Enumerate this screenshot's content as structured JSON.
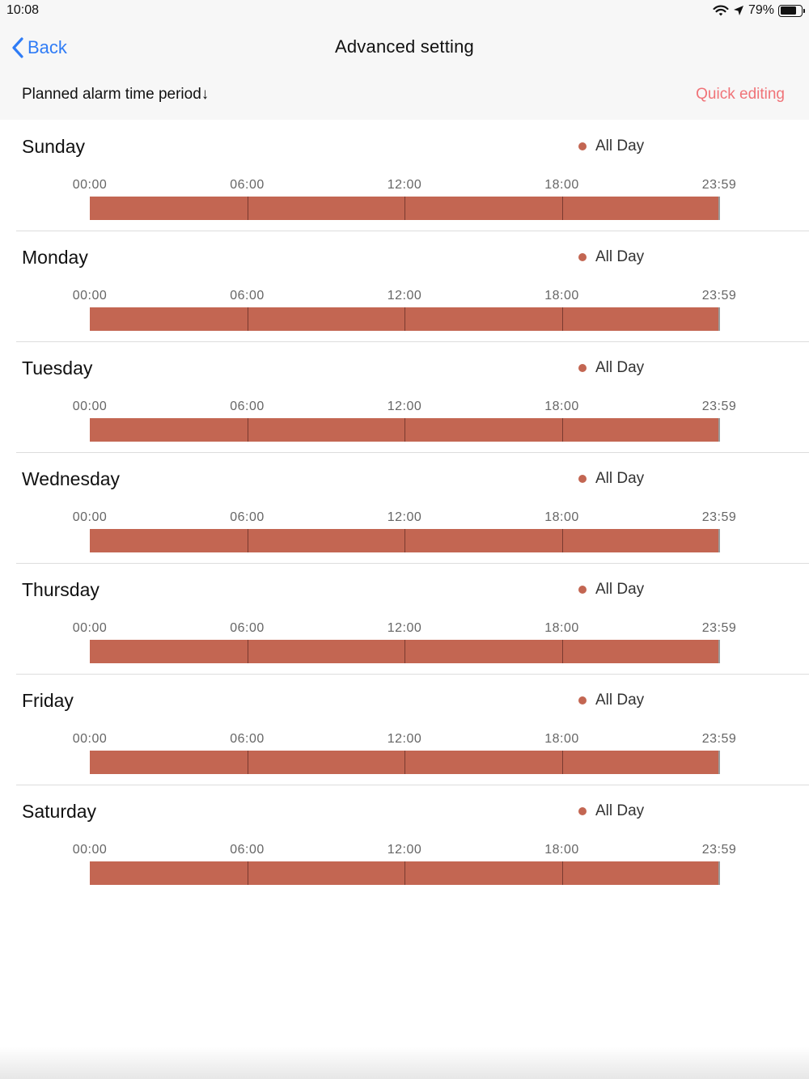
{
  "status_bar": {
    "time": "10:08",
    "battery_percent": "79%",
    "battery_level": 0.79
  },
  "nav": {
    "back_label": "Back",
    "title": "Advanced setting"
  },
  "subheader": {
    "period_label": "Planned alarm time period↓",
    "quick_edit_label": "Quick editing"
  },
  "colors": {
    "accent_blue": "#2f7cf6",
    "quick_edit_red": "#f07378",
    "schedule_bar": "#c36652"
  },
  "ticks": [
    "00:00",
    "06:00",
    "12:00",
    "18:00",
    "23:59"
  ],
  "days": [
    {
      "name": "Sunday",
      "legend": "All Day"
    },
    {
      "name": "Monday",
      "legend": "All Day"
    },
    {
      "name": "Tuesday",
      "legend": "All Day"
    },
    {
      "name": "Wednesday",
      "legend": "All Day"
    },
    {
      "name": "Thursday",
      "legend": "All Day"
    },
    {
      "name": "Friday",
      "legend": "All Day"
    },
    {
      "name": "Saturday",
      "legend": "All Day"
    }
  ]
}
